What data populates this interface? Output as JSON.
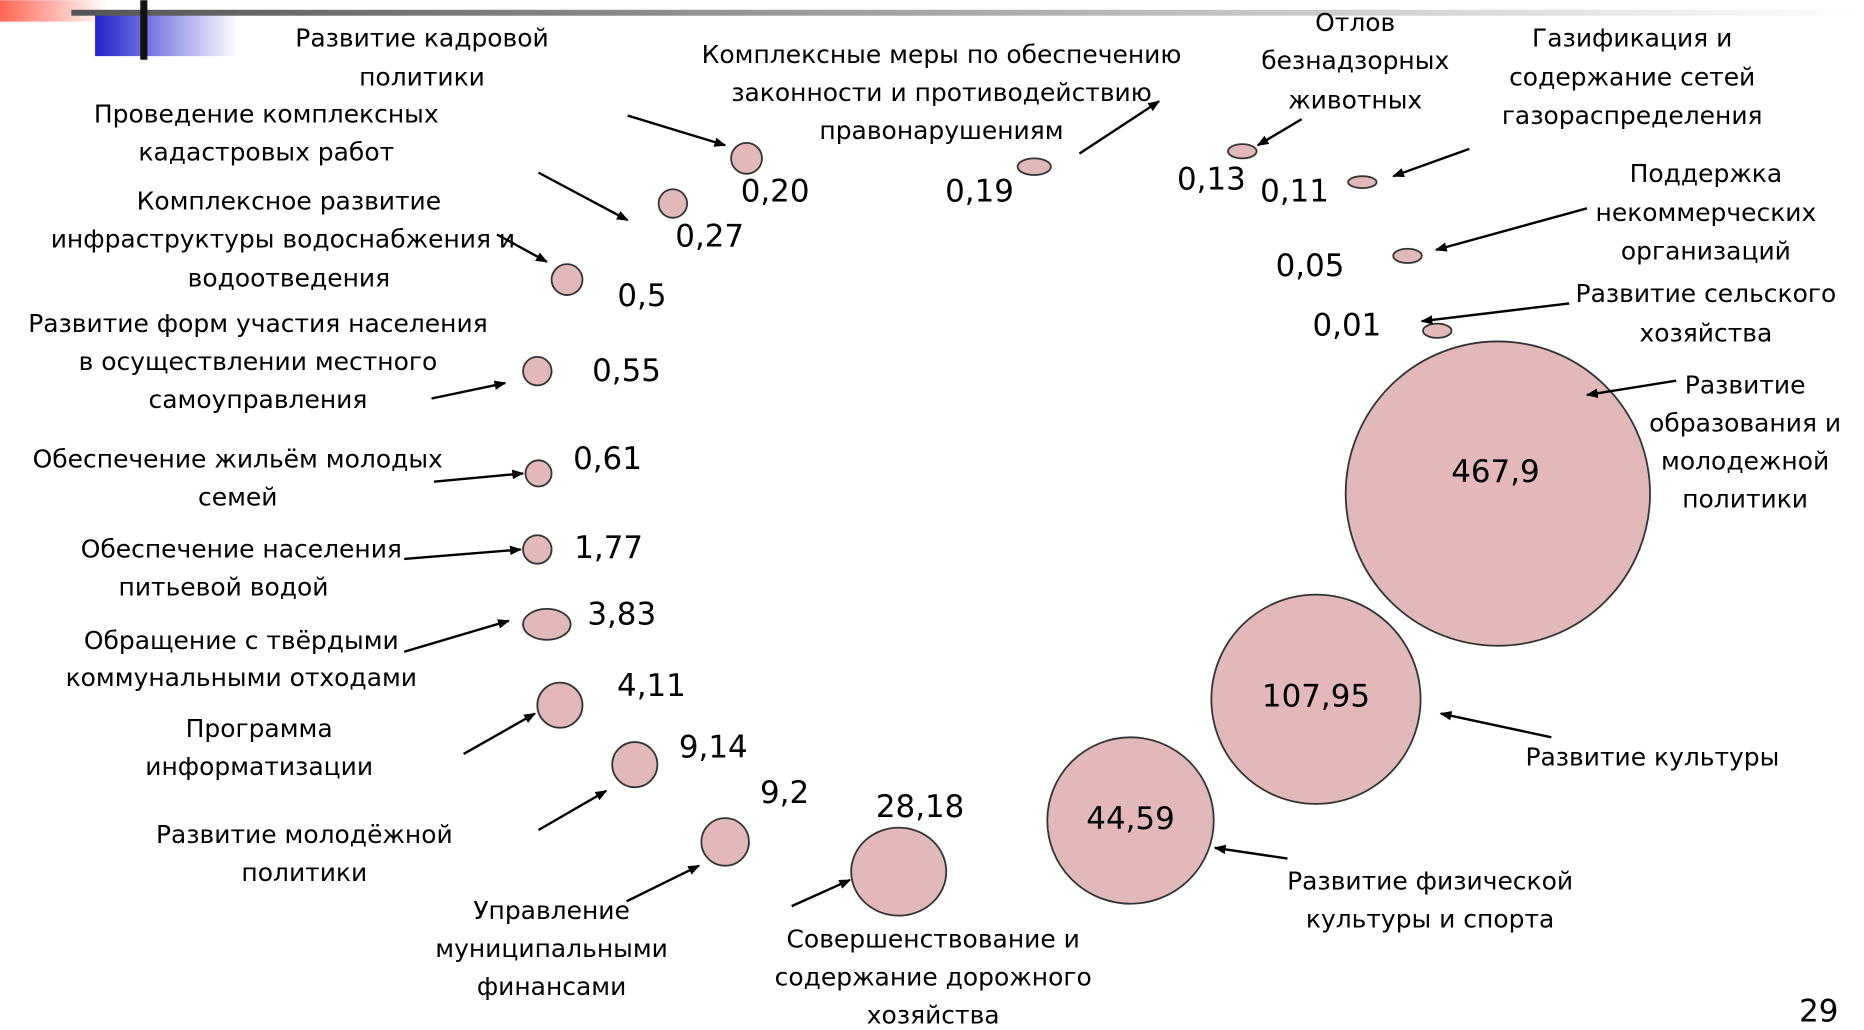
{
  "items": [
    {
      "label": [
        "Развитие кадровой",
        "политики"
      ],
      "value": "0,20"
    },
    {
      "label": [
        "Проведение комплексных",
        "кадастровых работ"
      ],
      "value": "0,27"
    },
    {
      "label": [
        "Комплексные меры по обеспечению",
        "законности и противодействию",
        "правонарушениям"
      ],
      "value": "0,19"
    },
    {
      "label": [
        "Отлов",
        "безнадзорных",
        "животных"
      ],
      "value": "0,13"
    },
    {
      "label": [
        "Газификация и",
        "содержание сетей",
        "газораспределения"
      ],
      "value": "0,11"
    },
    {
      "label": [
        "Поддержка",
        "некоммерческих",
        "организаций"
      ],
      "value": "0,05"
    },
    {
      "label": [
        "Развитие сельского",
        "хозяйства"
      ],
      "value": "0,01"
    },
    {
      "label": [
        "Развитие",
        "образования и",
        "молодежной",
        "политики"
      ],
      "value": "467,9"
    },
    {
      "label": [
        "Развитие культуры"
      ],
      "value": "107,95"
    },
    {
      "label": [
        "Развитие физической",
        "культуры и спорта"
      ],
      "value": "44,59"
    },
    {
      "label": [
        "Совершенствование и",
        "содержание дорожного",
        "хозяйства"
      ],
      "value": "28,18"
    },
    {
      "label": [
        "Управление",
        "муниципальными",
        "финансами"
      ],
      "value": "9,2"
    },
    {
      "label": [
        "Развитие молодёжной",
        "политики"
      ],
      "value": "9,14"
    },
    {
      "label": [
        "Программа",
        "информатизации"
      ],
      "value": "4,11"
    },
    {
      "label": [
        "Обращение с твёрдыми",
        "коммунальными отходами"
      ],
      "value": "3,83"
    },
    {
      "label": [
        "Обеспечение населения",
        "питьевой водой"
      ],
      "value": "1,77"
    },
    {
      "label": [
        "Обеспечение жильём молодых",
        "семей"
      ],
      "value": "0,61"
    },
    {
      "label": [
        "Развитие форм участия населения",
        "в осуществлении местного",
        "самоуправления"
      ],
      "value": "0,55"
    },
    {
      "label": [
        "Комплексное развитие",
        "инфраструктуры водоснабжения и",
        "водоотведения"
      ],
      "value": "0,5"
    }
  ],
  "page_number": "29"
}
